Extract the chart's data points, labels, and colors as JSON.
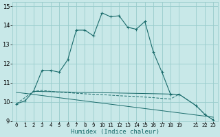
{
  "xlabel": "Humidex (Indice chaleur)",
  "bg_color": "#c8e8e8",
  "grid_color": "#99cccc",
  "line_color": "#1a6b6b",
  "xlim": [
    -0.5,
    23.5
  ],
  "ylim": [
    9,
    15.2
  ],
  "xticks": [
    0,
    1,
    2,
    3,
    4,
    5,
    6,
    7,
    8,
    9,
    10,
    11,
    12,
    13,
    14,
    15,
    16,
    17,
    18,
    19,
    21,
    22,
    23
  ],
  "yticks": [
    9,
    10,
    11,
    12,
    13,
    14,
    15
  ],
  "series1_x": [
    0,
    1,
    2,
    3,
    4,
    5,
    6,
    7,
    8,
    9,
    10,
    11,
    12,
    13,
    14,
    15,
    16,
    17,
    18,
    19,
    21,
    22,
    23
  ],
  "series1_y": [
    9.9,
    10.05,
    10.55,
    11.65,
    11.65,
    11.55,
    12.2,
    13.75,
    13.75,
    13.45,
    14.65,
    14.45,
    14.5,
    13.9,
    13.8,
    14.2,
    12.6,
    11.55,
    10.4,
    10.4,
    9.8,
    9.35,
    9.05
  ],
  "series2_x": [
    0,
    2,
    3,
    4,
    5,
    6,
    7,
    8,
    9,
    10,
    11,
    12,
    13,
    14,
    15,
    16,
    17,
    18,
    19,
    21,
    22,
    23
  ],
  "series2_y": [
    9.9,
    10.55,
    10.6,
    10.55,
    10.5,
    10.48,
    10.45,
    10.42,
    10.4,
    10.38,
    10.35,
    10.32,
    10.3,
    10.28,
    10.25,
    10.22,
    10.18,
    10.15,
    10.4,
    9.8,
    9.35,
    9.05
  ],
  "series3_x": [
    0,
    23
  ],
  "series3_y": [
    10.5,
    9.2
  ],
  "series4_x": [
    2,
    19
  ],
  "series4_y": [
    10.55,
    10.4
  ]
}
